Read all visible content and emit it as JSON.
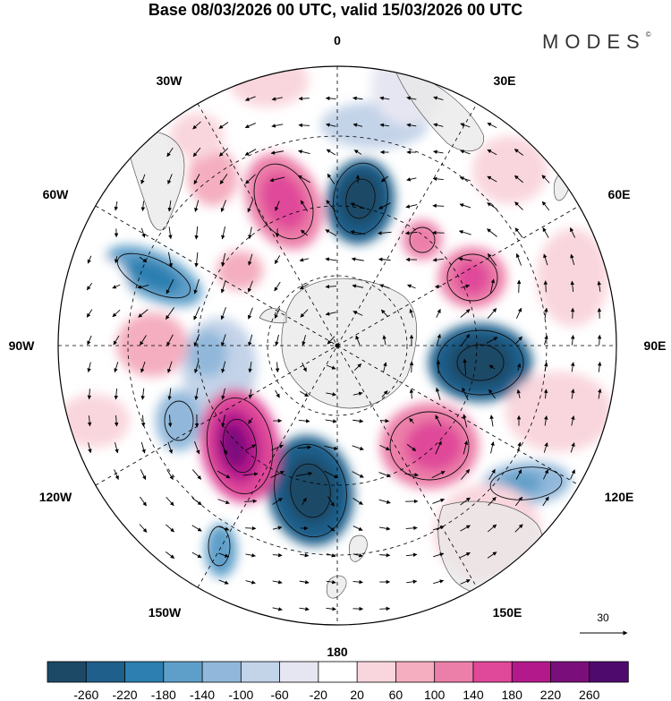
{
  "title": "Base 08/03/2026 00 UTC, valid 15/03/2026 00 UTC",
  "logo": "MODES",
  "logo_mark": "©",
  "longitude_labels": {
    "top": "0",
    "top_left": "30W",
    "top_right": "30E",
    "upper_left": "60W",
    "upper_right": "60E",
    "left": "90W",
    "right": "90E",
    "lower_left": "120W",
    "lower_right": "120E",
    "bottom_left": "150W",
    "bottom_right": "150E",
    "bottom": "180"
  },
  "reference_vector": "30",
  "colorbar": {
    "tick_labels": [
      "-260",
      "-220",
      "-180",
      "-140",
      "-100",
      "-60",
      "-20",
      "20",
      "60",
      "100",
      "140",
      "180",
      "220",
      "260"
    ],
    "colors": [
      "#1c4966",
      "#1f5f8b",
      "#2c7fb0",
      "#5e9fc9",
      "#91b8da",
      "#c3d3e8",
      "#e6e6f2",
      "#ffffff",
      "#f9d6dd",
      "#f4aebf",
      "#ec7fa9",
      "#e0489a",
      "#b4198c",
      "#7a0f7c",
      "#4f0a6e"
    ]
  },
  "map": {
    "projection": "south polar stereographic",
    "field": "height anomaly with wind vectors",
    "colors": {
      "land": "#e8e8e8",
      "coast": "#555555",
      "grid": "#000000",
      "arrow": "#000000"
    }
  }
}
